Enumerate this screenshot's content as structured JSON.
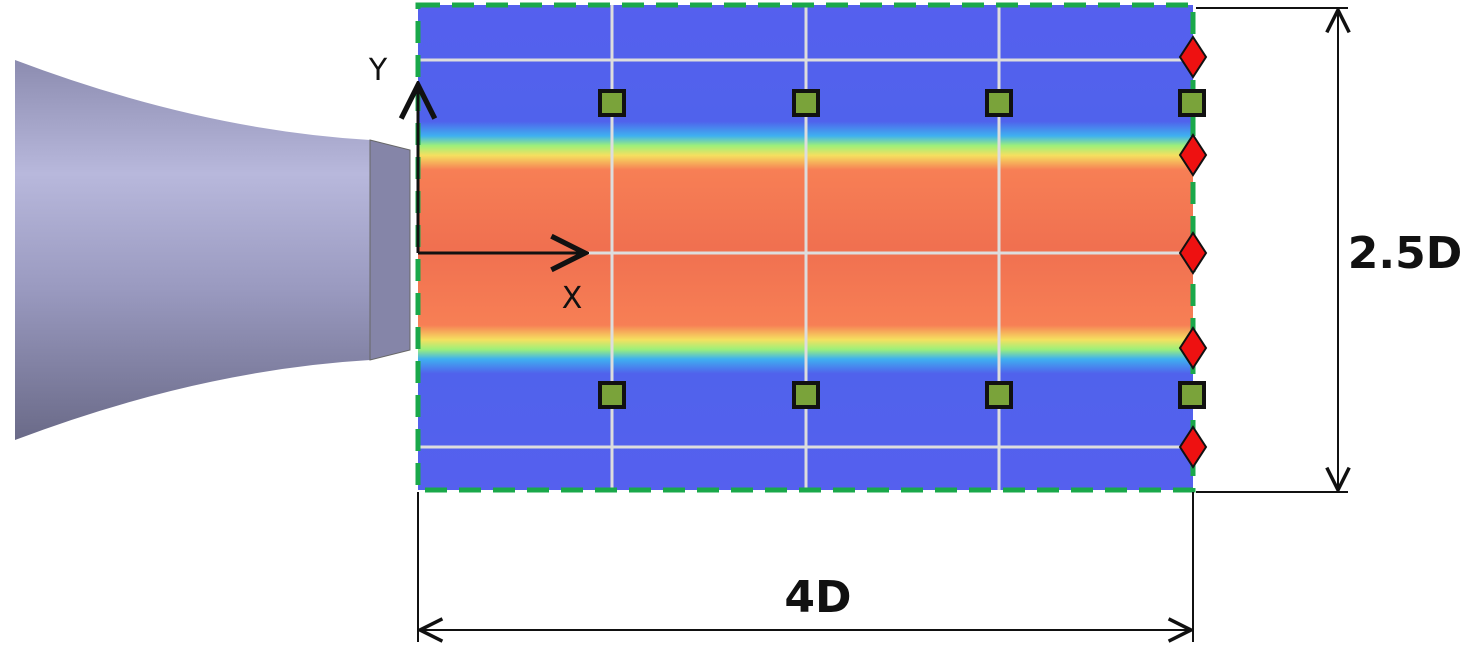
{
  "axes": {
    "y": "Y",
    "x": "X"
  },
  "dimensions": {
    "height": "2.5D",
    "width": "4D"
  }
}
